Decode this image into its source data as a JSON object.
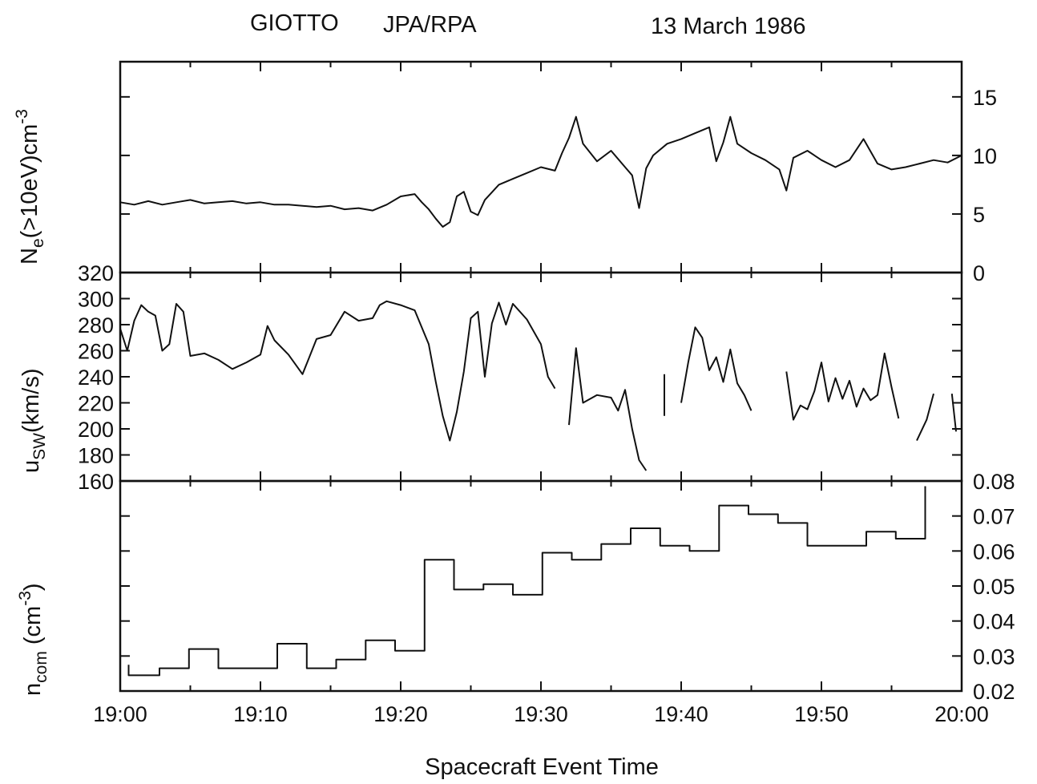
{
  "header": {
    "spacecraft": "GIOTTO",
    "instrument": "JPA/RPA",
    "date": "13 March 1986"
  },
  "chart_data": [
    {
      "type": "line",
      "panel": "top",
      "ylabel_main": "N",
      "ylabel_sub": "e",
      "ylabel_rest": "(>10eV)cm",
      "ylabel_sup": "-3",
      "ylim": [
        0,
        18
      ],
      "yticks": [
        0,
        5,
        10,
        15
      ],
      "ytick_side": "right",
      "xlim": [
        0,
        60
      ],
      "series": [
        {
          "values": [
            [
              0.0,
              6.0
            ],
            [
              1.0,
              5.8
            ],
            [
              2.0,
              6.1
            ],
            [
              3.0,
              5.8
            ],
            [
              4.0,
              6.0
            ],
            [
              5.0,
              6.2
            ],
            [
              6.0,
              5.9
            ],
            [
              7.0,
              6.0
            ],
            [
              8.0,
              6.1
            ],
            [
              9.0,
              5.9
            ],
            [
              10.0,
              6.0
            ],
            [
              11.0,
              5.8
            ],
            [
              12.0,
              5.8
            ],
            [
              13.0,
              5.7
            ],
            [
              14.0,
              5.6
            ],
            [
              15.0,
              5.7
            ],
            [
              16.0,
              5.4
            ],
            [
              17.0,
              5.5
            ],
            [
              18.0,
              5.3
            ],
            [
              19.0,
              5.8
            ],
            [
              20.0,
              6.5
            ],
            [
              21.0,
              6.7
            ],
            [
              21.5,
              6.0
            ],
            [
              22.0,
              5.4
            ],
            [
              22.5,
              4.6
            ],
            [
              23.0,
              3.9
            ],
            [
              23.5,
              4.3
            ],
            [
              24.0,
              6.5
            ],
            [
              24.5,
              6.9
            ],
            [
              25.0,
              5.2
            ],
            [
              25.5,
              4.9
            ],
            [
              26.0,
              6.2
            ],
            [
              27.0,
              7.5
            ],
            [
              28.0,
              8.0
            ],
            [
              29.0,
              8.5
            ],
            [
              30.0,
              9.0
            ],
            [
              31.0,
              8.7
            ],
            [
              31.5,
              10.2
            ],
            [
              32.0,
              11.5
            ],
            [
              32.5,
              13.3
            ],
            [
              33.0,
              11.0
            ],
            [
              34.0,
              9.5
            ],
            [
              35.0,
              10.4
            ],
            [
              36.0,
              9.0
            ],
            [
              36.5,
              8.3
            ],
            [
              37.0,
              5.5
            ],
            [
              37.5,
              8.9
            ],
            [
              38.0,
              10.0
            ],
            [
              39.0,
              11.0
            ],
            [
              40.0,
              11.4
            ],
            [
              41.0,
              11.9
            ],
            [
              42.0,
              12.4
            ],
            [
              42.5,
              9.5
            ],
            [
              43.0,
              11.1
            ],
            [
              43.5,
              13.3
            ],
            [
              44.0,
              11.0
            ],
            [
              45.0,
              10.2
            ],
            [
              46.0,
              9.6
            ],
            [
              47.0,
              8.8
            ],
            [
              47.5,
              7.0
            ],
            [
              48.0,
              9.8
            ],
            [
              49.0,
              10.4
            ],
            [
              50.0,
              9.6
            ],
            [
              51.0,
              9.0
            ],
            [
              52.0,
              9.6
            ],
            [
              53.0,
              11.4
            ],
            [
              54.0,
              9.3
            ],
            [
              55.0,
              8.8
            ],
            [
              56.0,
              9.0
            ],
            [
              57.0,
              9.3
            ],
            [
              58.0,
              9.6
            ],
            [
              59.0,
              9.4
            ],
            [
              60.0,
              10.0
            ]
          ]
        }
      ]
    },
    {
      "type": "line",
      "panel": "middle",
      "ylabel_main": "u",
      "ylabel_sub": "SW",
      "ylabel_rest": "(km/s)",
      "ylim": [
        160,
        320
      ],
      "yticks": [
        160,
        180,
        200,
        220,
        240,
        260,
        280,
        300,
        320
      ],
      "ytick_side": "left",
      "xlim": [
        0,
        60
      ],
      "series": [
        {
          "segments": [
            [
              [
                0.0,
                277
              ],
              [
                0.5,
                260
              ],
              [
                1.0,
                283
              ],
              [
                1.5,
                295
              ],
              [
                2.0,
                290
              ],
              [
                2.5,
                287
              ],
              [
                3.0,
                260
              ],
              [
                3.5,
                265
              ],
              [
                4.0,
                296
              ],
              [
                4.5,
                290
              ],
              [
                5.0,
                256
              ],
              [
                6.0,
                258
              ],
              [
                7.0,
                253
              ],
              [
                8.0,
                246
              ],
              [
                9.0,
                251
              ],
              [
                10.0,
                257
              ],
              [
                10.5,
                279
              ],
              [
                11.0,
                268
              ],
              [
                12.0,
                257
              ],
              [
                13.0,
                242
              ],
              [
                14.0,
                269
              ],
              [
                15.0,
                272
              ],
              [
                16.0,
                290
              ],
              [
                17.0,
                283
              ],
              [
                18.0,
                285
              ],
              [
                18.5,
                295
              ],
              [
                19.0,
                298
              ],
              [
                20.0,
                295
              ],
              [
                21.0,
                291
              ],
              [
                22.0,
                265
              ],
              [
                22.5,
                236
              ],
              [
                23.0,
                210
              ],
              [
                23.5,
                191
              ],
              [
                24.0,
                213
              ],
              [
                24.5,
                244
              ],
              [
                25.0,
                285
              ],
              [
                25.5,
                290
              ],
              [
                26.0,
                240
              ],
              [
                26.5,
                281
              ],
              [
                27.0,
                297
              ],
              [
                27.5,
                280
              ],
              [
                28.0,
                296
              ],
              [
                29.0,
                284
              ],
              [
                30.0,
                265
              ],
              [
                30.5,
                240
              ],
              [
                31.0,
                231
              ]
            ],
            [
              [
                32.0,
                203
              ],
              [
                32.5,
                262
              ],
              [
                33.0,
                220
              ],
              [
                34.0,
                226
              ],
              [
                35.0,
                224
              ],
              [
                35.5,
                214
              ],
              [
                36.0,
                230
              ],
              [
                36.5,
                200
              ],
              [
                37.0,
                176
              ],
              [
                37.5,
                168
              ]
            ],
            [
              [
                38.8,
                242
              ],
              [
                38.8,
                210
              ]
            ],
            [
              [
                40.0,
                220
              ],
              [
                40.5,
                251
              ],
              [
                41.0,
                278
              ],
              [
                41.5,
                270
              ],
              [
                42.0,
                245
              ],
              [
                42.5,
                255
              ],
              [
                43.0,
                236
              ],
              [
                43.5,
                261
              ],
              [
                44.0,
                235
              ],
              [
                44.5,
                226
              ],
              [
                45.0,
                214
              ]
            ],
            [
              [
                47.5,
                244
              ],
              [
                48.0,
                207
              ],
              [
                48.5,
                218
              ],
              [
                49.0,
                215
              ],
              [
                49.5,
                229
              ],
              [
                50.0,
                251
              ],
              [
                50.5,
                221
              ],
              [
                51.0,
                239
              ],
              [
                51.5,
                223
              ],
              [
                52.0,
                237
              ],
              [
                52.5,
                217
              ],
              [
                53.0,
                231
              ],
              [
                53.5,
                222
              ],
              [
                54.0,
                226
              ],
              [
                54.5,
                258
              ],
              [
                55.0,
                232
              ],
              [
                55.5,
                208
              ]
            ],
            [
              [
                56.8,
                191
              ],
              [
                57.5,
                207
              ],
              [
                58.0,
                227
              ]
            ],
            [
              [
                59.3,
                227
              ],
              [
                59.6,
                198
              ]
            ]
          ]
        }
      ]
    },
    {
      "type": "line",
      "panel": "bottom",
      "step": true,
      "ylabel_main": "n",
      "ylabel_sub": "com",
      "ylabel_rest": " (cm",
      "ylabel_sup": "-3",
      "ylabel_end": ")",
      "ylim": [
        0.02,
        0.08
      ],
      "yticks": [
        0.02,
        0.03,
        0.04,
        0.05,
        0.06,
        0.07,
        0.08
      ],
      "ytick_labels": [
        "0.02",
        "0.03",
        "0.04",
        "0.05",
        "0.06",
        "0.07",
        "0.08"
      ],
      "ytick_side": "right",
      "xlim": [
        0,
        60
      ],
      "xlabel": "Spacecraft Event Time",
      "xticks": [
        0,
        10,
        20,
        30,
        40,
        50,
        60
      ],
      "xtick_labels": [
        "19:00",
        "19:10",
        "19:20",
        "19:30",
        "19:40",
        "19:50",
        "20:00"
      ],
      "series": [
        {
          "steps": [
            [
              0.6,
              2.8,
              0.0245
            ],
            [
              2.8,
              4.9,
              0.0265
            ],
            [
              4.9,
              7.0,
              0.032
            ],
            [
              7.0,
              11.2,
              0.0265
            ],
            [
              11.2,
              13.3,
              0.0335
            ],
            [
              13.3,
              15.4,
              0.0265
            ],
            [
              15.4,
              17.5,
              0.029
            ],
            [
              17.5,
              19.6,
              0.0345
            ],
            [
              19.6,
              21.7,
              0.0315
            ],
            [
              21.7,
              23.8,
              0.0575
            ],
            [
              23.8,
              25.9,
              0.049
            ],
            [
              25.9,
              28.0,
              0.0505
            ],
            [
              28.0,
              30.1,
              0.0475
            ],
            [
              30.1,
              32.2,
              0.0595
            ],
            [
              32.2,
              34.3,
              0.0575
            ],
            [
              34.3,
              36.4,
              0.062
            ],
            [
              36.4,
              38.5,
              0.0665
            ],
            [
              38.5,
              40.6,
              0.0615
            ],
            [
              40.6,
              42.7,
              0.06
            ],
            [
              42.7,
              44.8,
              0.073
            ],
            [
              44.8,
              46.9,
              0.0705
            ],
            [
              46.9,
              49.0,
              0.068
            ],
            [
              49.0,
              53.2,
              0.0615
            ],
            [
              53.2,
              55.3,
              0.0655
            ],
            [
              55.3,
              57.4,
              0.0635
            ],
            [
              57.4,
              57.4,
              0.0785
            ]
          ]
        }
      ]
    }
  ]
}
